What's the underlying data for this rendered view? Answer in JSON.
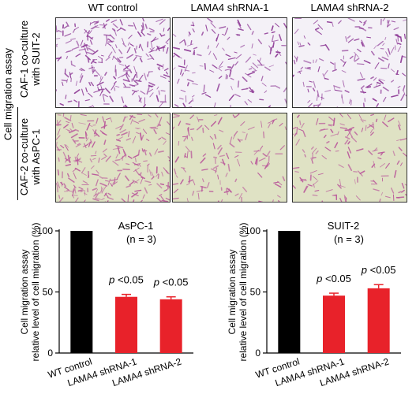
{
  "assay_label": "Cell migration assay",
  "columns": [
    "WT control",
    "LAMA4 shRNA-1",
    "LAMA4 shRNA-2"
  ],
  "rows": [
    {
      "line1": "CAF-1 co-culture",
      "line2": "with SUIT-2",
      "stain": "#8e3a96",
      "background": "#f4f1f7",
      "densities": [
        1.0,
        0.55,
        0.6
      ]
    },
    {
      "line1": "CAF-2 co-culture",
      "line2": "with AsPC-1",
      "stain": "#b9559a",
      "background": "#dfe2c4",
      "densities": [
        1.0,
        0.5,
        0.55
      ]
    }
  ],
  "chart_data": [
    {
      "type": "bar",
      "title": "AsPC-1",
      "subtitle": "(n = 3)",
      "ylabel": [
        "Cell migration assay",
        "relative level of cell migration (%)"
      ],
      "categories": [
        "WT control",
        "LAMA4 shRNA-1",
        "LAMA4 shRNA-2"
      ],
      "values": [
        100,
        46,
        44
      ],
      "errors": [
        0,
        2,
        2
      ],
      "colors": [
        "#000000",
        "#e8222a",
        "#e8222a"
      ],
      "annotations": [
        "",
        "p <0.05",
        "p <0.05"
      ],
      "ylim": [
        0,
        100
      ],
      "yticks": [
        0,
        50,
        100
      ]
    },
    {
      "type": "bar",
      "title": "SUIT-2",
      "subtitle": "(n = 3)",
      "ylabel": [
        "Cell migration assay",
        "relative level of cell migration (%)"
      ],
      "categories": [
        "WT control",
        "LAMA4 shRNA-1",
        "LAMA4 shRNA-2"
      ],
      "values": [
        100,
        47,
        53
      ],
      "errors": [
        0,
        2,
        3
      ],
      "colors": [
        "#000000",
        "#e8222a",
        "#e8222a"
      ],
      "annotations": [
        "",
        "p <0.05",
        "p <0.05"
      ],
      "ylim": [
        0,
        100
      ],
      "yticks": [
        0,
        50,
        100
      ]
    }
  ]
}
